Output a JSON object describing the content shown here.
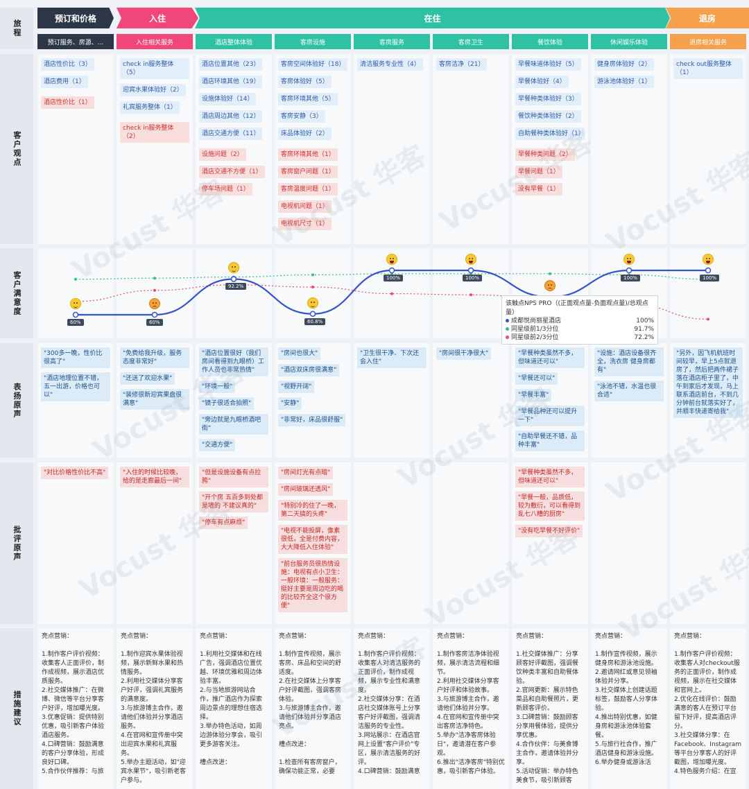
{
  "row_labels": {
    "journey": "旅程",
    "opinions": "客户观点",
    "satisfaction": "客户满意度",
    "praise": "表扬原声",
    "criticism": "批评原声",
    "suggestions": "措施建议"
  },
  "phases": [
    {
      "label": "预订和价格",
      "color": "#2e3748"
    },
    {
      "label": "入住",
      "color": "#f0467a"
    },
    {
      "label": "在住",
      "color": "#2ec1a4"
    },
    {
      "label": "退房",
      "color": "#f5a04a"
    }
  ],
  "columns": [
    {
      "label": "预订服务、房源、...",
      "color": "#2e3748",
      "opinions": [
        {
          "text": "酒店性价比（3）",
          "tone": "pos"
        },
        {
          "text": "酒店费用（1）",
          "tone": "pos"
        },
        {
          "text": "酒店性价比（1）",
          "tone": "neg"
        }
      ],
      "praise": [
        "\"300多一晚，性价比很高了\"",
        "\"酒店地理位置不错，五一出游，价格也可以\""
      ],
      "criticism": [
        "\"对比价格性价比不高\""
      ],
      "suggestions": "亮点营销：\n\n1.制作客户评价视频：收集客人正面评价，制作成视频，展示酒店优质服务。\n2.社交媒体推广：在微博、微信等平台分享客户好评，增加曝光度。\n3.优惠促销：提供特别优惠，吸引新客户体验酒店服务。\n4.口碑营销：鼓励满意的客户分享体验，形成良好口碑。\n5.合作伙伴推荐：与旅"
    },
    {
      "label": "入住相关服务",
      "color": "#f0467a",
      "opinions": [
        {
          "text": "check in服务整体（5）",
          "tone": "pos"
        },
        {
          "text": "迎宾水果体验好（2）",
          "tone": "pos"
        },
        {
          "text": "礼宾服务整体（1）",
          "tone": "pos"
        },
        {
          "text": "check in服务整体（2）",
          "tone": "neg"
        }
      ],
      "praise": [
        "\"免费给我升级，服务态度非常好\"",
        "\"还送了欢迎水果\"",
        "\"装修很新迎宾果盘很满意\""
      ],
      "criticism": [
        "\"入住的时候比较晚，给的是走廊最后一间\""
      ],
      "suggestions": "亮点营销：\n\n1.制作迎宾水果体验视频，展示新鲜水果和热情服务。\n2.利用社交媒体分享客户好评，强调礼宾服务的满意度。\n3.与旅游博主合作，邀请他们体验并分享酒店服务。\n4.在官网和宣传册中突出迎宾水果和礼宾服务。\n5.举办主题活动，如\"迎宾水果节\"，吸引新老客户参与。"
    },
    {
      "label": "酒店整体体验",
      "color": "#2ec1a4",
      "opinions": [
        {
          "text": "酒店位置其他（23）",
          "tone": "pos"
        },
        {
          "text": "酒店环境其他（19）",
          "tone": "pos"
        },
        {
          "text": "设施体验好（14）",
          "tone": "pos"
        },
        {
          "text": "酒店周边其他（12）",
          "tone": "pos"
        },
        {
          "text": "酒店交通方便（11）",
          "tone": "pos"
        },
        {
          "text": "设施问题（2）",
          "tone": "neg"
        },
        {
          "text": "酒店交通不方便（1）",
          "tone": "neg"
        },
        {
          "text": "停车场问题（1）",
          "tone": "neg"
        }
      ],
      "praise": [
        "\"酒店位置很好（我们房间看得到九眼桥）工作人员也非常热情\"",
        "\"环境一般\"",
        "\"镜子很适合拍照\"",
        "\"旁边就是九眼桥酒吧街\"",
        "\"交通方便\""
      ],
      "criticism": [
        "\"但是设施设备有点拉胯\"",
        "\"开个房 五百多到处都是墙的 不建议真的\"",
        "\"停车有点麻烦\""
      ],
      "suggestions": "亮点营销：\n\n1.利用社交媒体和在线广告，强调酒店位置优越、环境优雅和周边体验丰富。\n2.与当地旅游网站合作，推广酒店作为探索周边景点的理想住宿选择。\n3.举办特色活动，如周边游体验分享会，吸引更多游客关注。\n\n槽点改进："
    },
    {
      "label": "客房设施",
      "color": "#2ec1a4",
      "opinions": [
        {
          "text": "客房空间体验好（18）",
          "tone": "pos"
        },
        {
          "text": "客房体验好（5）",
          "tone": "pos"
        },
        {
          "text": "客房环境其他（5）",
          "tone": "pos"
        },
        {
          "text": "客房安静（3）",
          "tone": "pos"
        },
        {
          "text": "床品体验好（2）",
          "tone": "pos"
        },
        {
          "text": "客房环境其他（1）",
          "tone": "neg"
        },
        {
          "text": "客房窗户问题（1）",
          "tone": "neg"
        },
        {
          "text": "客房温度问题（1）",
          "tone": "neg"
        },
        {
          "text": "电视机问题（1）",
          "tone": "neg"
        },
        {
          "text": "电视机尺寸（1）",
          "tone": "neg"
        }
      ],
      "praise": [
        "\"房间也很大\"",
        "\"酒店双床房很满意\"",
        "\"视野开阔\"",
        "\"安静\"",
        "\"非常好，床品很舒服\""
      ],
      "criticism": [
        "\"房间灯光有点暗\"",
        "\"房间玻璃还透风\"",
        "\"特别冷的住了一晚，第二天搞的头疼\"",
        "\"电视不能投屏，像素很低，全是付费内容，大大降低入住体验\"",
        "\"前台服务员很热情设施：电视有点小卫生：一般环境：一般服务：挺好主要是周边吃的喝的比较齐全这个很方便\""
      ],
      "suggestions": "亮点营销：\n\n1.制作宣传视频，展示客房、床品和空间的舒适度。\n2.在社交媒体上分享客户好评截图，强调客房体验。\n3.与旅游博主合作，邀请他们体验并分享酒店亮点。\n\n槽点改进：\n\n1.检查所有客房窗户，确保功能正常，必要"
    },
    {
      "label": "客房服务",
      "color": "#2ec1a4",
      "opinions": [
        {
          "text": "清洁服务专业性（4）",
          "tone": "pos"
        }
      ],
      "praise": [
        "\"卫生很干净、下次还会入住\""
      ],
      "criticism": [],
      "suggestions": "亮点营销：\n\n1.制作客户评价视频：收集客人对清洁服务的正面评价，制作成视频，展示专业性和满意度。\n2.社交媒体分享：在酒店社交媒体账号上分享客户好评截图，强调清洁服务的专业性。\n3.网站展示：在酒店官网上设置\"客户评价\"专区，展示清洁服务的好评。\n4.口碑营销：鼓励满意"
    },
    {
      "label": "客房卫生",
      "color": "#2ec1a4",
      "opinions": [
        {
          "text": "客房洁净（21）",
          "tone": "pos"
        }
      ],
      "praise": [
        "\"房间很干净很大\""
      ],
      "criticism": [],
      "suggestions": "亮点营销：\n\n1.制作客房洁净体验视频，展示清洁流程和细节。\n2.利用社交媒体分享客户好评和体验故事。\n3.与旅游博主合作，邀请他们体验并分享。\n4.在官网和宣传册中突出客房洁净特色。\n5.举办\"洁净客房体验日\"，邀请潜在客户参观。\n6.推出\"洁净客房\"特别优惠，吸引新客户体验。"
    },
    {
      "label": "餐饮体验",
      "color": "#2ec1a4",
      "opinions": [
        {
          "text": "早餐味道体验好（5）",
          "tone": "pos"
        },
        {
          "text": "早餐体验好（4）",
          "tone": "pos"
        },
        {
          "text": "早餐种类体验好（3）",
          "tone": "pos"
        },
        {
          "text": "餐饮种类体验好（2）",
          "tone": "pos"
        },
        {
          "text": "自助餐种类体验好（1）",
          "tone": "pos"
        },
        {
          "text": "早餐种类问题（2）",
          "tone": "neg"
        },
        {
          "text": "早餐问题（1）",
          "tone": "neg"
        },
        {
          "text": "没有早餐（1）",
          "tone": "neg"
        }
      ],
      "praise": [
        "\"早餐种类虽然不多，但味道还可以\"",
        "\"早餐还可以\"",
        "\"早餐丰富\"",
        "\"早餐品种还可以提升一下\"",
        "\"自助早餐还不错，品种丰富\""
      ],
      "criticism": [
        "\"早餐种类虽然不多，但味道还可以\"",
        "\"早餐一般，品质低，较为敷衍，可以看得到乱七八糟的厨房\"",
        "\"没有吃早餐不好评价\""
      ],
      "suggestions": "亮点营销：\n\n1.社交媒体推广：分享顾客好评截图，强调餐饮种类丰富和自助餐体验。\n2.官网更新：展示特色菜品和自助餐照片，更新顾客评价。\n3.口碑营销：鼓励顾客分享用餐体验，提供分享优惠。\n4.合作伙伴：与美食博主合作，邀请体验并分享。\n5.活动促销：举办特色美食节，吸引新顾客"
    },
    {
      "label": "休闲娱乐体验",
      "color": "#2ec1a4",
      "opinions": [
        {
          "text": "健身房体验好（2）",
          "tone": "pos"
        },
        {
          "text": "游泳池体验好（1）",
          "tone": "pos"
        }
      ],
      "praise": [
        "\"设施：酒店设备很齐全，洗衣房 健身房都有\"",
        "\"泳池不错，水温也很合适\""
      ],
      "criticism": [],
      "suggestions": "亮点营销：\n\n1.制作宣传视频，展示健身房和游泳池设施。\n2.邀请网红或意见领袖体验并分享。\n3.社交媒体上创建话题标签，鼓励客人分享体验。\n4.推出特别优惠，如健身房和游泳池体验套餐。\n5.与旅行社合作，推广酒店健身和游泳设施。\n6.举办健身或游泳活"
    },
    {
      "label": "退房相关服务",
      "color": "#f5a04a",
      "opinions": [
        {
          "text": "check out服务整体（1）",
          "tone": "pos"
        }
      ],
      "praise": [
        "\"另外，因飞机航班时间较早，早上5点就退房了，然后把两件裙子落在酒店柜子里了，中午到家后才发现，马上联系酒店前台，不到几分钟前台就落实好了，并顺丰快递寄给我\""
      ],
      "criticism": [],
      "suggestions": "亮点营销：\n\n1.制作客户评价视频：收集客人对checkout服务的正面评价，制作成视频，展示在社交媒体和官网上。\n2.优化在线评价：鼓励满意的客人在预订平台留下好评，提高酒店评分。\n3.社交媒体分享：在Facebook、Instagram等平台分享客人的好评截图，增加曝光度。\n4.特色服务介绍：在宣"
    }
  ],
  "satisfaction": {
    "main_values": [
      60,
      60,
      92.2,
      60.8,
      100,
      100,
      null,
      100,
      100
    ],
    "point_labels": [
      "60%",
      "60%",
      "92.2%",
      "60.8%",
      "100%",
      "100%",
      "",
      "100%",
      "100%"
    ],
    "top_third": [
      92,
      93,
      94,
      96,
      97,
      97,
      97,
      96,
      92
    ],
    "top_two_thirds": [
      72,
      82,
      87,
      85,
      79,
      78,
      75,
      70,
      56
    ],
    "faces": [
      "neutral",
      "sad",
      "neutral",
      "neutral",
      "happy",
      "happy",
      "sad",
      "happy",
      "happy"
    ],
    "colors": {
      "main": "#3552c8",
      "top_third": "#2fbf8a",
      "top_two_thirds": "#e84a6a"
    },
    "tooltip": {
      "title": "该触点NPS PRO（(正面观点量-负面观点量)/总观点量）",
      "rows": [
        {
          "name": "成都悦尚丽星酒店",
          "value": "100%",
          "color": "#3552c8"
        },
        {
          "name": "同星级前1/3分位",
          "value": "91.7%",
          "color": "#2fbf8a"
        },
        {
          "name": "同星级前2/3分位",
          "value": "72.2%",
          "color": "#e84a6a"
        }
      ]
    }
  },
  "watermark": "Vocust 华客"
}
